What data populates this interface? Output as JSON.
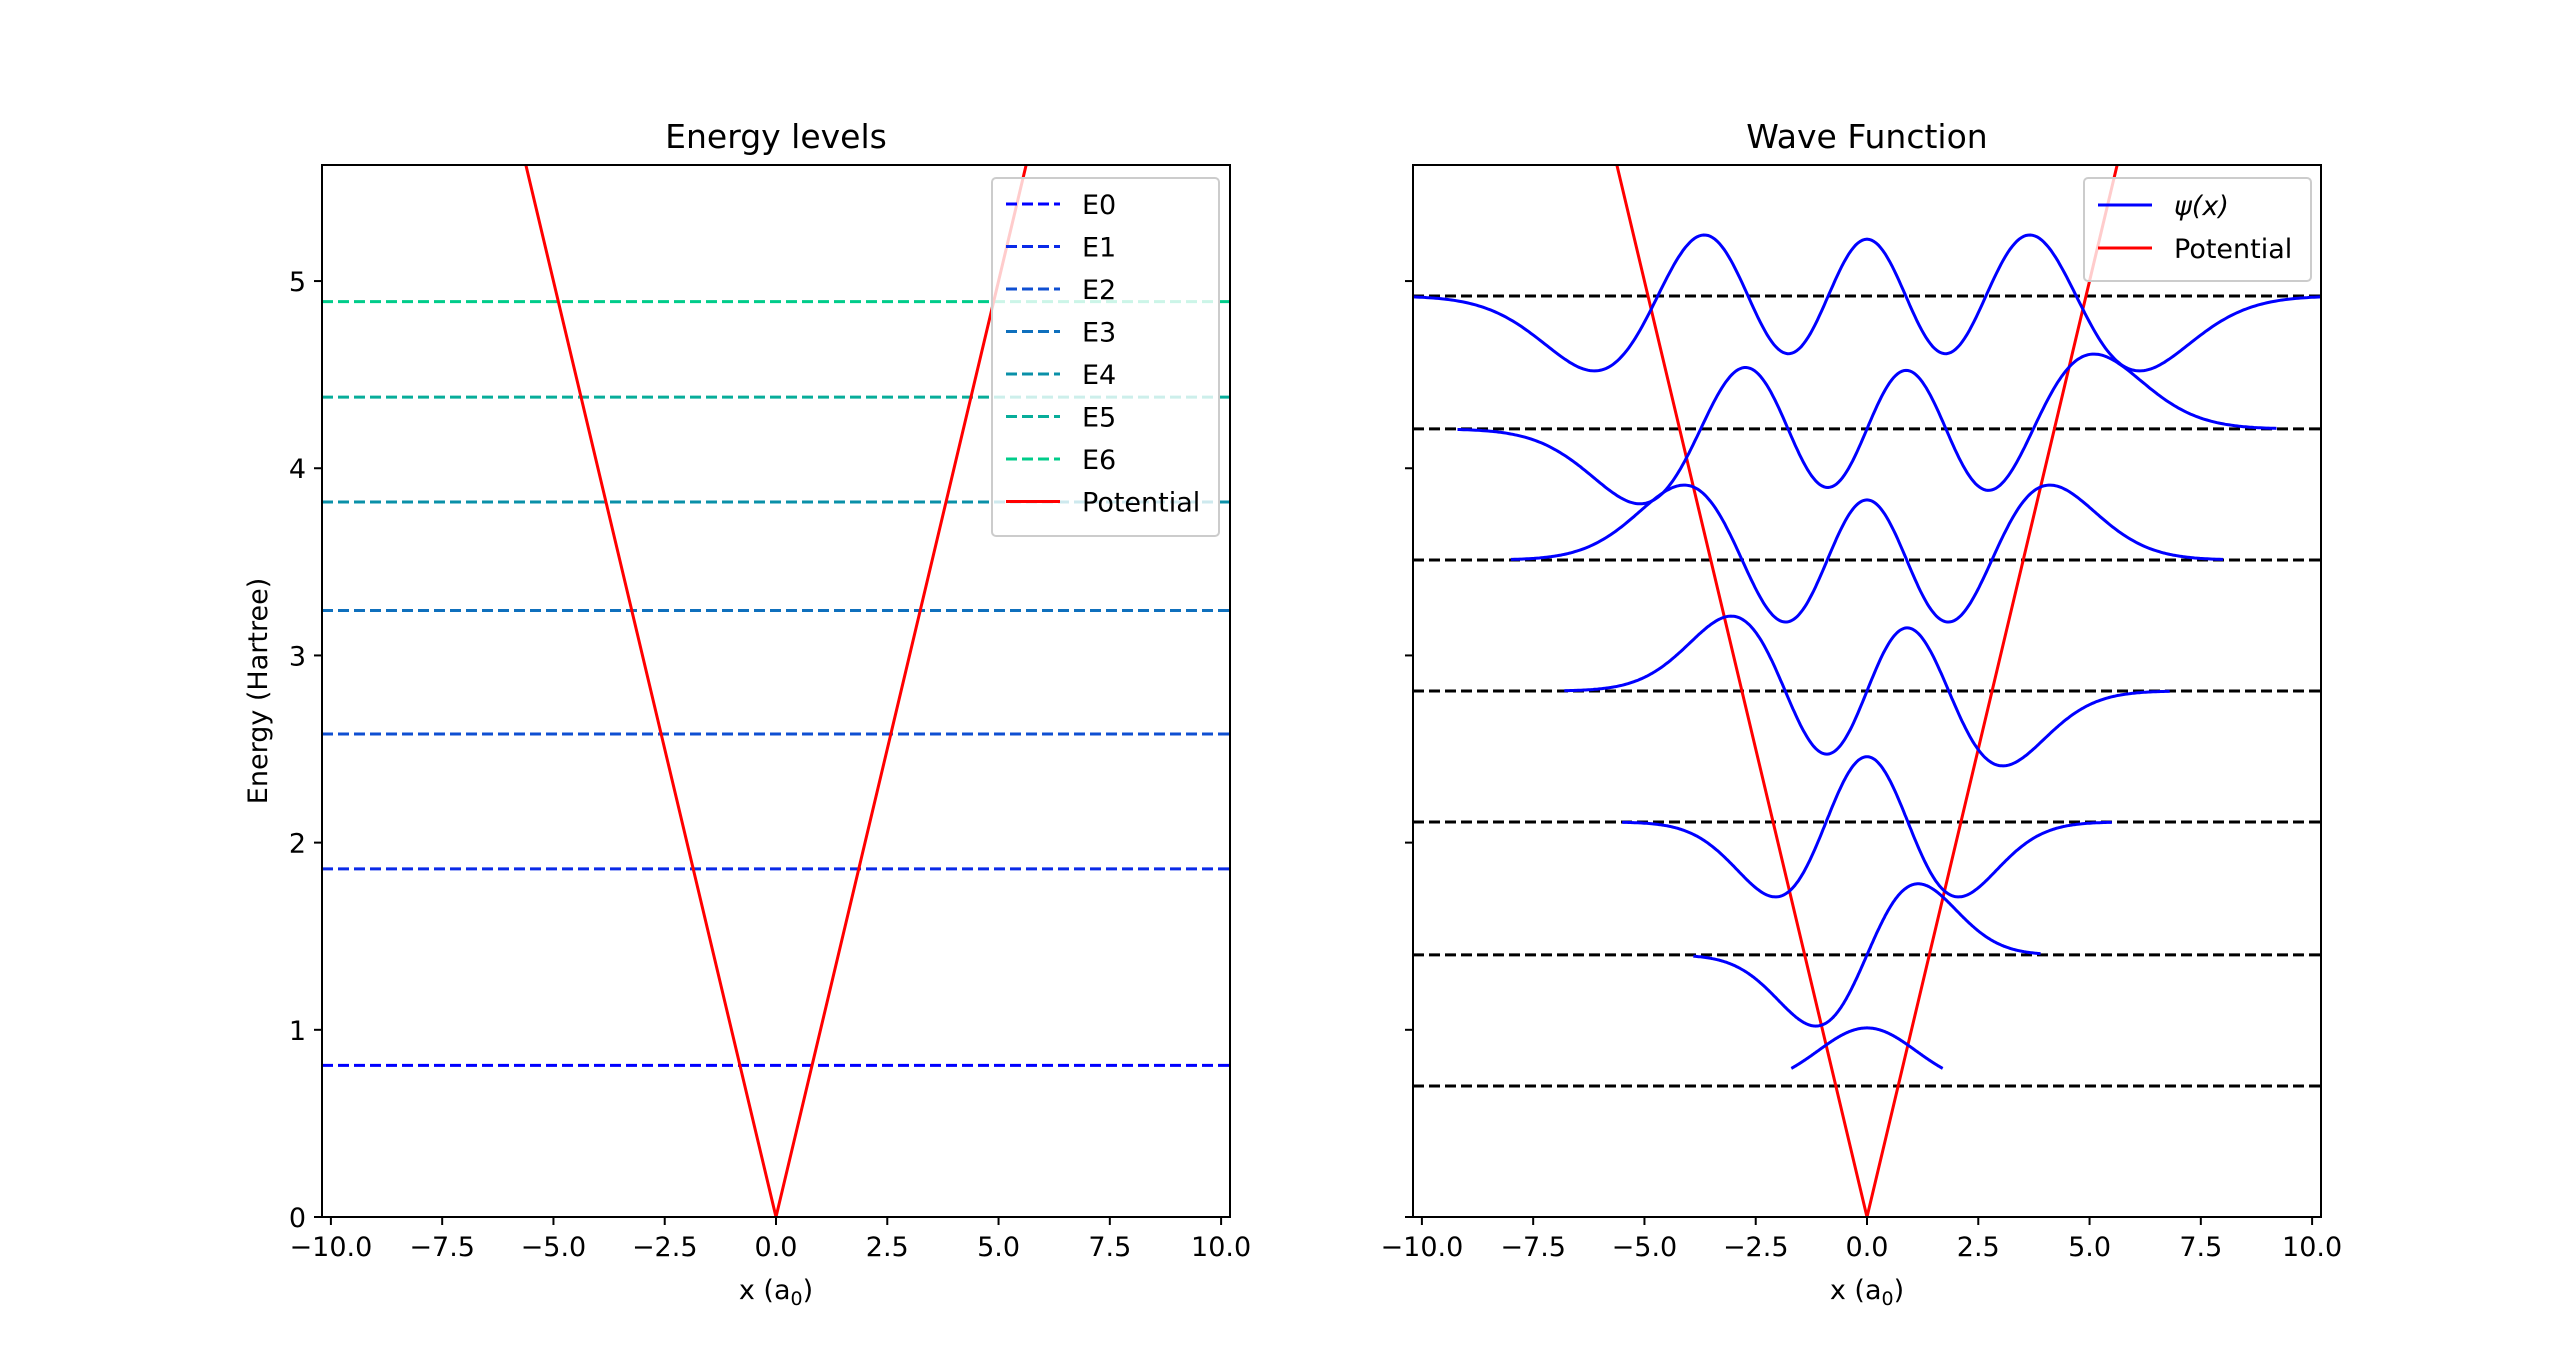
{
  "chart_data": [
    {
      "type": "line",
      "title": "Energy levels",
      "xlabel": "x (a",
      "xlabel_sub": "0",
      "xlabel_close": ")",
      "ylabel": "Energy (Hartree)",
      "xlim": [
        -10.2,
        10.2
      ],
      "ylim": [
        0,
        5.62
      ],
      "xticks": [
        -10.0,
        -7.5,
        -5.0,
        -2.5,
        0.0,
        2.5,
        5.0,
        7.5,
        10.0
      ],
      "xtick_labels": [
        "−10.0",
        "−7.5",
        "−5.0",
        "−2.5",
        "0.0",
        "2.5",
        "5.0",
        "7.5",
        "10.0"
      ],
      "yticks": [
        0,
        1,
        2,
        3,
        4,
        5
      ],
      "ytick_labels": [
        "0",
        "1",
        "2",
        "3",
        "4",
        "5"
      ],
      "grid": false,
      "legend_placement": "upper-right",
      "levels": [
        {
          "name": "E0",
          "energy": 0.81,
          "color": "#0000ff"
        },
        {
          "name": "E1",
          "energy": 1.86,
          "color": "#0a2ae8"
        },
        {
          "name": "E2",
          "energy": 2.58,
          "color": "#0f4fd2"
        },
        {
          "name": "E3",
          "energy": 3.24,
          "color": "#0f70bd"
        },
        {
          "name": "E4",
          "energy": 3.82,
          "color": "#0a90a8"
        },
        {
          "name": "E5",
          "energy": 4.38,
          "color": "#07ad9a"
        },
        {
          "name": "E6",
          "energy": 4.89,
          "color": "#00cc8a"
        }
      ],
      "potential": {
        "name": "Potential",
        "color": "#ff0000",
        "x": [
          -10,
          0,
          10
        ],
        "y": [
          10,
          0,
          10
        ]
      }
    },
    {
      "type": "line",
      "title": "Wave Function",
      "xlabel": "x (a",
      "xlabel_sub": "0",
      "xlabel_close": ")",
      "xlim": [
        -10.2,
        10.2
      ],
      "ylim": [
        0,
        5.62
      ],
      "xticks": [
        -10.0,
        -7.5,
        -5.0,
        -2.5,
        0.0,
        2.5,
        5.0,
        7.5,
        10.0
      ],
      "xtick_labels": [
        "−10.0",
        "−7.5",
        "−5.0",
        "−2.5",
        "0.0",
        "2.5",
        "5.0",
        "7.5",
        "10.0"
      ],
      "yticks": [
        0,
        1,
        2,
        3,
        4,
        5
      ],
      "grid": false,
      "legend_placement": "upper-right",
      "wave_name": "ψ(x)",
      "wave_color": "#0000ff",
      "potential": {
        "name": "Potential",
        "color": "#ff0000",
        "x": [
          -10,
          0,
          10
        ],
        "y": [
          10,
          0,
          10
        ]
      },
      "baselines": [
        0.7,
        1.4,
        2.11,
        2.81,
        3.51,
        4.21,
        4.92
      ],
      "baseline_color": "#000000",
      "wavefunctions": [
        {
          "n": 0,
          "baseline": 0.7,
          "x_range": [
            -1.7,
            1.7
          ],
          "amplitude": 0.31,
          "sigma": 1.1
        },
        {
          "n": 1,
          "baseline": 1.4,
          "x_range": [
            -3.9,
            3.9
          ],
          "amplitude": 0.38,
          "sigma": 1.15
        },
        {
          "n": 2,
          "baseline": 2.11,
          "x_range": [
            -5.5,
            5.5
          ],
          "amplitude": 0.4,
          "sigma": 1.3
        },
        {
          "n": 3,
          "baseline": 2.81,
          "x_range": [
            -6.8,
            6.8
          ],
          "amplitude": 0.4,
          "sigma": 1.5
        },
        {
          "n": 4,
          "baseline": 3.51,
          "x_range": [
            -8.0,
            8.0
          ],
          "amplitude": 0.4,
          "sigma": 1.7
        },
        {
          "n": 5,
          "baseline": 4.21,
          "x_range": [
            -9.2,
            9.2
          ],
          "amplitude": 0.4,
          "sigma": 1.85
        },
        {
          "n": 6,
          "baseline": 4.92,
          "x_range": [
            -10.2,
            10.2
          ],
          "amplitude": 0.4,
          "sigma": 2.0
        }
      ]
    }
  ]
}
